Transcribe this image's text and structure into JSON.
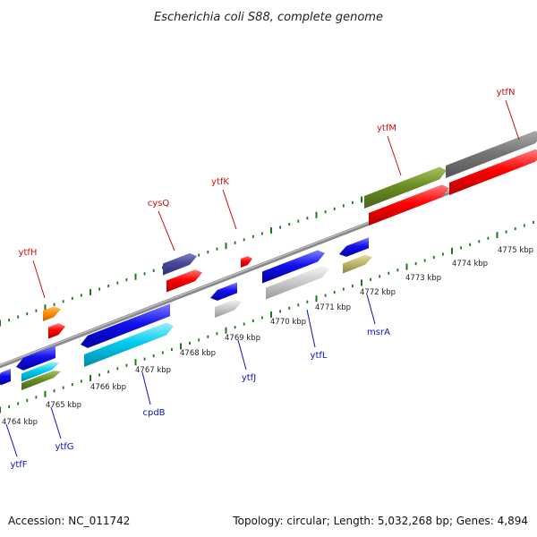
{
  "title": "Escherichia coli S88, complete genome",
  "footer": {
    "accession": "Accession: NC_011742",
    "summary": "Topology: circular; Length: 5,032,268 bp; Genes: 4,894"
  },
  "kbp_labels": [
    "4764 kbp",
    "4765 kbp",
    "4766 kbp",
    "4767 kbp",
    "4768 kbp",
    "4769 kbp",
    "4770 kbp",
    "4771 kbp",
    "4772 kbp",
    "4773 kbp",
    "4774 kbp",
    "4775 kbp"
  ],
  "gene_labels_top": [
    "ytfH",
    "cysQ",
    "ytfK",
    "ytfM",
    "ytfN"
  ],
  "gene_labels_bottom": [
    "ytfF",
    "ytfG",
    "cpdB",
    "ytfJ",
    "ytfL",
    "msrA"
  ],
  "colors": {
    "red": "#ff0000",
    "blue": "#1111ee",
    "cyan": "#00ccee",
    "olive": "#6b8e23",
    "khaki": "#bdb76b",
    "lightgray": "#cccccc",
    "darkgray": "#777777",
    "slate": "#48489a",
    "orange": "#ff8c00",
    "tick": "#1a7a1a",
    "backbone": "#888888",
    "label_top": "#cc1111",
    "label_bottom": "#1111bb"
  }
}
